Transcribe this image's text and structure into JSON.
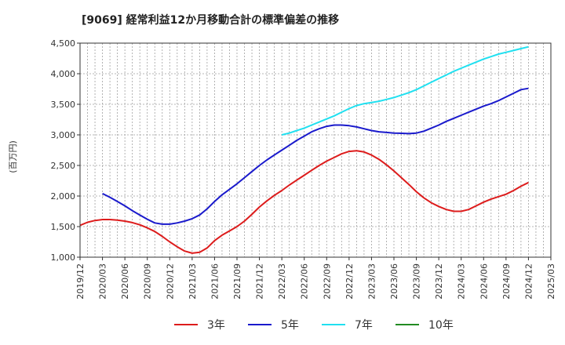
{
  "chart_data": {
    "type": "line",
    "title": "[9069]  経常利益12か月移動合計の標準偏差の推移",
    "ylabel": "(百万円)",
    "xlabel": "",
    "ylim": [
      1000,
      4500
    ],
    "yticks": [
      1000,
      1500,
      2000,
      2500,
      3000,
      3500,
      4000,
      4500
    ],
    "ytick_labels": [
      "1,000",
      "1,500",
      "2,000",
      "2,500",
      "3,000",
      "3,500",
      "4,000",
      "4,500"
    ],
    "xlim": [
      "2019-12",
      "2025-03"
    ],
    "xtick_labels": [
      "2019/12",
      "2020/03",
      "2020/06",
      "2020/09",
      "2020/12",
      "2021/03",
      "2021/06",
      "2021/09",
      "2021/12",
      "2022/03",
      "2022/06",
      "2022/09",
      "2022/12",
      "2023/03",
      "2023/06",
      "2023/09",
      "2023/12",
      "2024/03",
      "2024/06",
      "2024/09",
      "2024/12",
      "2025/03"
    ],
    "grid": true,
    "legend_position": "bottom",
    "series": [
      {
        "name": "3年",
        "color": "#dd1c1c",
        "x": [
          "2019-12",
          "2020-01",
          "2020-02",
          "2020-03",
          "2020-04",
          "2020-05",
          "2020-06",
          "2020-07",
          "2020-08",
          "2020-09",
          "2020-10",
          "2020-11",
          "2020-12",
          "2021-01",
          "2021-02",
          "2021-03",
          "2021-04",
          "2021-05",
          "2021-06",
          "2021-07",
          "2021-08",
          "2021-09",
          "2021-10",
          "2021-11",
          "2021-12",
          "2022-01",
          "2022-02",
          "2022-03",
          "2022-04",
          "2022-05",
          "2022-06",
          "2022-07",
          "2022-08",
          "2022-09",
          "2022-10",
          "2022-11",
          "2022-12",
          "2023-01",
          "2023-02",
          "2023-03",
          "2023-04",
          "2023-05",
          "2023-06",
          "2023-07",
          "2023-08",
          "2023-09",
          "2023-10",
          "2023-11",
          "2023-12",
          "2024-01",
          "2024-02",
          "2024-03",
          "2024-04",
          "2024-05",
          "2024-06",
          "2024-07",
          "2024-08",
          "2024-09",
          "2024-10",
          "2024-11",
          "2024-12"
        ],
        "values": [
          1520,
          1570,
          1600,
          1615,
          1615,
          1605,
          1590,
          1565,
          1530,
          1480,
          1420,
          1340,
          1250,
          1170,
          1100,
          1065,
          1080,
          1150,
          1270,
          1360,
          1430,
          1500,
          1590,
          1700,
          1820,
          1920,
          2010,
          2090,
          2180,
          2260,
          2340,
          2420,
          2500,
          2570,
          2630,
          2690,
          2730,
          2740,
          2720,
          2670,
          2600,
          2510,
          2410,
          2300,
          2190,
          2070,
          1970,
          1890,
          1830,
          1780,
          1750,
          1750,
          1780,
          1840,
          1900,
          1950,
          1990,
          2030,
          2090,
          2160,
          2220
        ]
      },
      {
        "name": "5年",
        "color": "#1a1acc",
        "x": [
          "2020-03",
          "2020-04",
          "2020-05",
          "2020-06",
          "2020-07",
          "2020-08",
          "2020-09",
          "2020-10",
          "2020-11",
          "2020-12",
          "2021-01",
          "2021-02",
          "2021-03",
          "2021-04",
          "2021-05",
          "2021-06",
          "2021-07",
          "2021-08",
          "2021-09",
          "2021-10",
          "2021-11",
          "2021-12",
          "2022-01",
          "2022-02",
          "2022-03",
          "2022-04",
          "2022-05",
          "2022-06",
          "2022-07",
          "2022-08",
          "2022-09",
          "2022-10",
          "2022-11",
          "2022-12",
          "2023-01",
          "2023-02",
          "2023-03",
          "2023-04",
          "2023-05",
          "2023-06",
          "2023-07",
          "2023-08",
          "2023-09",
          "2023-10",
          "2023-11",
          "2023-12",
          "2024-01",
          "2024-02",
          "2024-03",
          "2024-04",
          "2024-05",
          "2024-06",
          "2024-07",
          "2024-08",
          "2024-09",
          "2024-10",
          "2024-11",
          "2024-12"
        ],
        "values": [
          2040,
          1980,
          1910,
          1840,
          1760,
          1690,
          1620,
          1560,
          1540,
          1540,
          1560,
          1590,
          1630,
          1690,
          1790,
          1910,
          2020,
          2110,
          2200,
          2300,
          2400,
          2500,
          2590,
          2670,
          2750,
          2830,
          2910,
          2980,
          3050,
          3100,
          3140,
          3160,
          3160,
          3150,
          3130,
          3100,
          3070,
          3050,
          3040,
          3030,
          3025,
          3020,
          3030,
          3060,
          3110,
          3160,
          3220,
          3270,
          3320,
          3370,
          3420,
          3470,
          3510,
          3560,
          3620,
          3680,
          3740,
          3760
        ]
      },
      {
        "name": "7年",
        "color": "#20e0f0",
        "x": [
          "2022-03",
          "2022-04",
          "2022-05",
          "2022-06",
          "2022-07",
          "2022-08",
          "2022-09",
          "2022-10",
          "2022-11",
          "2022-12",
          "2023-01",
          "2023-02",
          "2023-03",
          "2023-04",
          "2023-05",
          "2023-06",
          "2023-07",
          "2023-08",
          "2023-09",
          "2023-10",
          "2023-11",
          "2023-12",
          "2024-01",
          "2024-02",
          "2024-03",
          "2024-04",
          "2024-05",
          "2024-06",
          "2024-07",
          "2024-08",
          "2024-09",
          "2024-10",
          "2024-11",
          "2024-12"
        ],
        "values": [
          3000,
          3030,
          3070,
          3110,
          3160,
          3210,
          3260,
          3310,
          3370,
          3430,
          3480,
          3510,
          3530,
          3550,
          3580,
          3610,
          3650,
          3690,
          3740,
          3800,
          3860,
          3920,
          3980,
          4040,
          4090,
          4140,
          4190,
          4240,
          4280,
          4320,
          4350,
          4380,
          4410,
          4440
        ]
      },
      {
        "name": "10年",
        "color": "#228b22",
        "x": [],
        "values": []
      }
    ]
  }
}
